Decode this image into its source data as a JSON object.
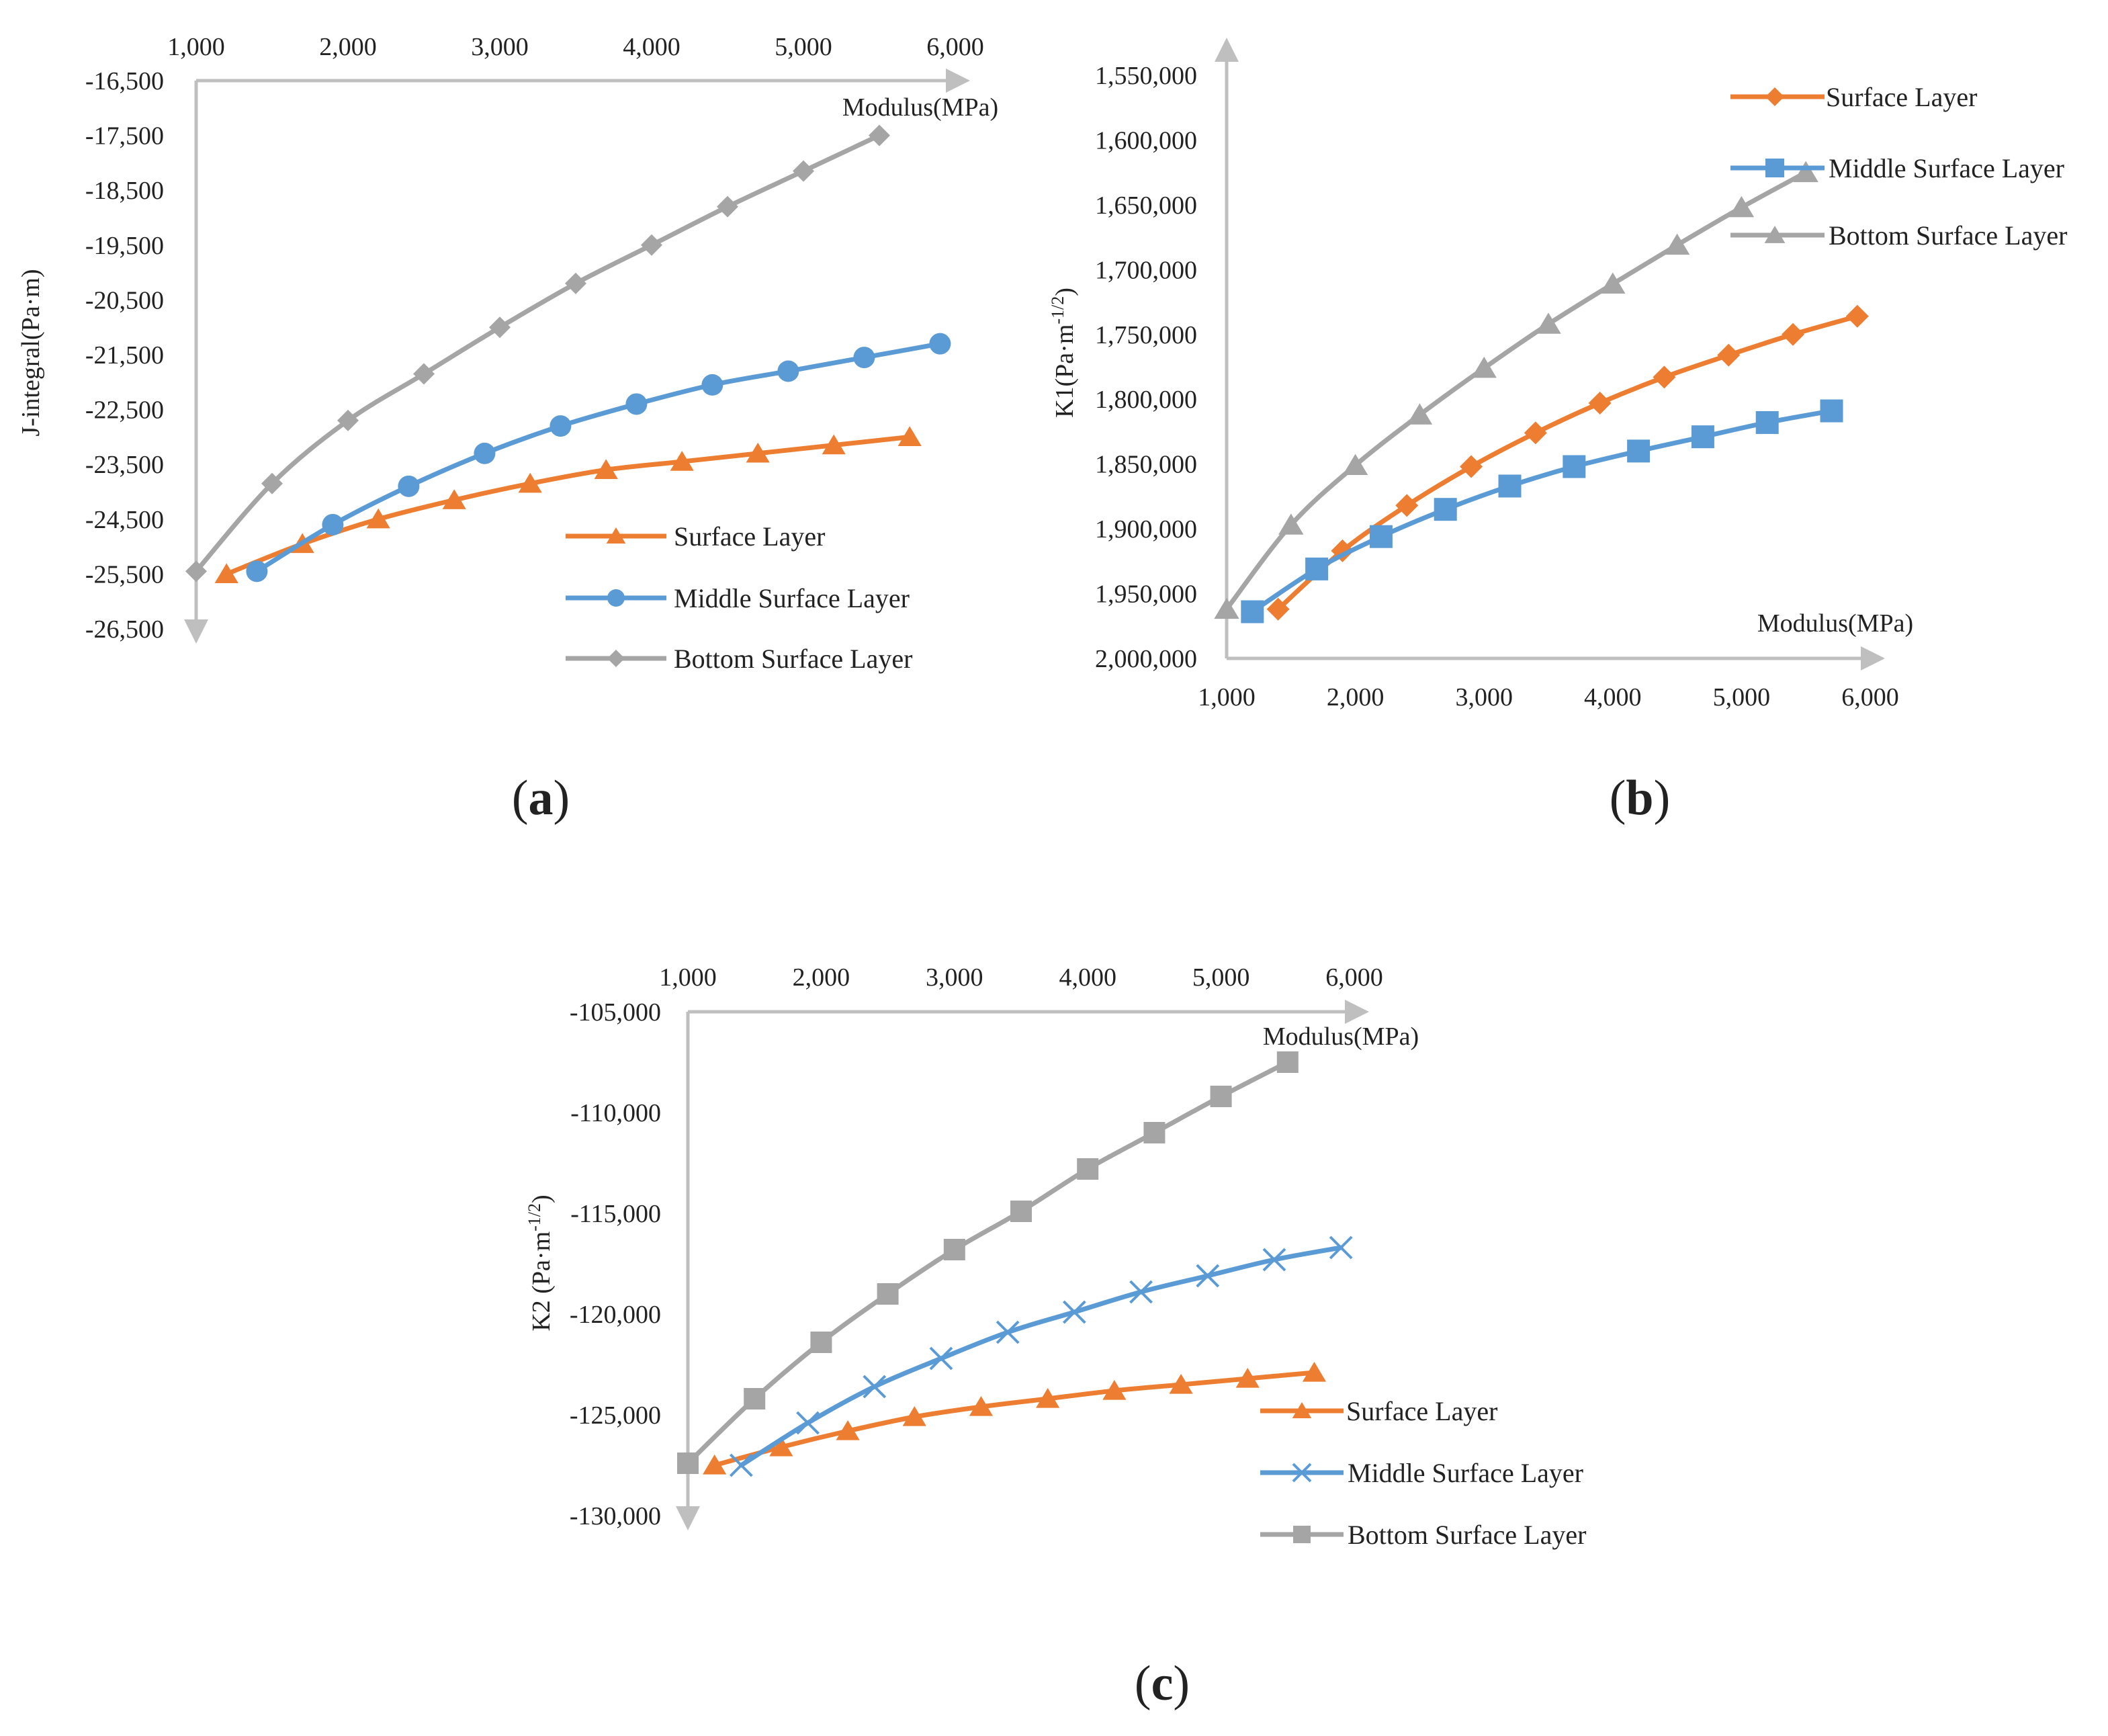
{
  "colors": {
    "surface": "#ED7D31",
    "middle": "#5B9BD5",
    "bottom": "#A5A5A5",
    "axis": "#BFBFBF",
    "text": "#222222"
  },
  "chart_data": [
    {
      "id": "a",
      "panel_label": "a",
      "type": "line",
      "ylabel": "J-integral(Pa·m)",
      "xlabel": "Modulus(MPa)",
      "x_axis_position": "top",
      "y_reversed": true,
      "xlim": [
        1000,
        6000
      ],
      "ylim": [
        -16500,
        -26500
      ],
      "x_ticks": [
        "1,000",
        "2,000",
        "3,000",
        "4,000",
        "5,000",
        "6,000"
      ],
      "y_ticks": [
        "-16,500",
        "-17,500",
        "-18,500",
        "-19,500",
        "-20,500",
        "-21,500",
        "-22,500",
        "-23,500",
        "-24,500",
        "-25,500",
        "-26,500"
      ],
      "legend_position": "bottom-right",
      "series": [
        {
          "name": "Surface Layer",
          "color_key": "surface",
          "marker": "triangle",
          "x": [
            1200,
            1700,
            2200,
            2700,
            3200,
            3700,
            4200,
            4700,
            5200,
            5700
          ],
          "y": [
            -25500,
            -24950,
            -24500,
            -24150,
            -23850,
            -23600,
            -23450,
            -23300,
            -23150,
            -23000
          ]
        },
        {
          "name": "Middle Surface Layer",
          "color_key": "middle",
          "marker": "circle",
          "x": [
            1400,
            1900,
            2400,
            2900,
            3400,
            3900,
            4400,
            4900,
            5400,
            5900
          ],
          "y": [
            -25450,
            -24600,
            -23900,
            -23300,
            -22800,
            -22400,
            -22050,
            -21800,
            -21550,
            -21300
          ]
        },
        {
          "name": "Bottom Surface Layer",
          "color_key": "bottom",
          "marker": "diamond",
          "x": [
            1000,
            1500,
            2000,
            2500,
            3000,
            3500,
            4000,
            4500,
            5000,
            5500
          ],
          "y": [
            -25450,
            -23850,
            -22700,
            -21850,
            -21000,
            -20200,
            -19500,
            -18800,
            -18150,
            -17500
          ]
        }
      ]
    },
    {
      "id": "b",
      "panel_label": "b",
      "type": "line",
      "ylabel": "K1(Pa·m",
      "ylabel_sup": "-1/2",
      "ylabel_end": ")",
      "xlabel": "Modulus(MPa)",
      "x_axis_position": "bottom",
      "y_reversed": false,
      "xlim": [
        1000,
        6000
      ],
      "ylim": [
        1550000,
        2000000
      ],
      "x_ticks": [
        "1,000",
        "2,000",
        "3,000",
        "4,000",
        "5,000",
        "6,000"
      ],
      "y_ticks": [
        "1,550,000",
        "1,600,000",
        "1,650,000",
        "1,700,000",
        "1,750,000",
        "1,800,000",
        "1,850,000",
        "1,900,000",
        "1,950,000",
        "2,000,000"
      ],
      "legend_position": "top-right",
      "series": [
        {
          "name": "Surface Layer",
          "color_key": "surface",
          "marker": "diamond",
          "x": [
            1400,
            1900,
            2400,
            2900,
            3400,
            3900,
            4400,
            4900,
            5400,
            5900
          ],
          "y": [
            1962000,
            1917000,
            1882000,
            1852000,
            1826000,
            1803000,
            1783000,
            1766000,
            1750000,
            1736000
          ]
        },
        {
          "name": "Middle Surface Layer",
          "color_key": "middle",
          "marker": "square",
          "x": [
            1200,
            1700,
            2200,
            2700,
            3200,
            3700,
            4200,
            4700,
            5200,
            5700
          ],
          "y": [
            1964000,
            1931000,
            1906000,
            1885000,
            1867000,
            1852000,
            1840000,
            1829000,
            1818000,
            1809000
          ]
        },
        {
          "name": "Bottom Surface Layer",
          "color_key": "bottom",
          "marker": "triangle",
          "x": [
            1000,
            1500,
            2000,
            2500,
            3000,
            3500,
            4000,
            4500,
            5000,
            5500
          ],
          "y": [
            1962000,
            1897000,
            1851000,
            1812000,
            1776000,
            1742000,
            1711000,
            1681000,
            1652000,
            1625000
          ]
        }
      ]
    },
    {
      "id": "c",
      "panel_label": "c",
      "type": "line",
      "ylabel": "K2 (Pa·m",
      "ylabel_sup": "-1/2",
      "ylabel_end": ")",
      "xlabel": "Modulus(MPa)",
      "x_axis_position": "top",
      "y_reversed": true,
      "xlim": [
        1000,
        6000
      ],
      "ylim": [
        -105000,
        -130000
      ],
      "x_ticks": [
        "1,000",
        "2,000",
        "3,000",
        "4,000",
        "5,000",
        "6,000"
      ],
      "y_ticks": [
        "-105,000",
        "-110,000",
        "-115,000",
        "-120,000",
        "-125,000",
        "-130,000"
      ],
      "legend_position": "bottom-right",
      "series": [
        {
          "name": "Surface Layer",
          "color_key": "surface",
          "marker": "triangle",
          "x": [
            1200,
            1700,
            2200,
            2700,
            3200,
            3700,
            4200,
            4700,
            5200,
            5700
          ],
          "y": [
            -127500,
            -126600,
            -125800,
            -125100,
            -124600,
            -124200,
            -123800,
            -123500,
            -123200,
            -122900
          ]
        },
        {
          "name": "Middle Surface Layer",
          "color_key": "middle",
          "marker": "x",
          "x": [
            1400,
            1900,
            2400,
            2900,
            3400,
            3900,
            4400,
            4900,
            5400,
            5900
          ],
          "y": [
            -127500,
            -125400,
            -123600,
            -122200,
            -120900,
            -119900,
            -118900,
            -118100,
            -117300,
            -116700
          ]
        },
        {
          "name": "Bottom Surface Layer",
          "color_key": "bottom",
          "marker": "square",
          "x": [
            1000,
            1500,
            2000,
            2500,
            3000,
            3500,
            4000,
            4500,
            5000,
            5500
          ],
          "y": [
            -127400,
            -124200,
            -121400,
            -119000,
            -116800,
            -114900,
            -112800,
            -111000,
            -109200,
            -107500
          ]
        }
      ]
    }
  ]
}
